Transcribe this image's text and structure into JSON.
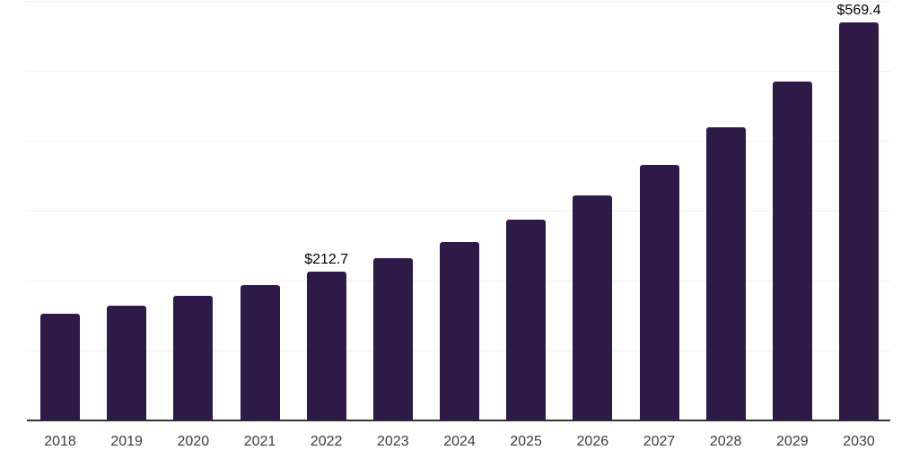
{
  "chart_data": {
    "type": "bar",
    "title": "",
    "categories": [
      "2018",
      "2019",
      "2020",
      "2021",
      "2022",
      "2023",
      "2024",
      "2025",
      "2026",
      "2027",
      "2028",
      "2029",
      "2030"
    ],
    "values": [
      152.6,
      164.5,
      178.2,
      194.0,
      212.7,
      231.5,
      255.6,
      286.8,
      322.2,
      365.0,
      419.6,
      485.0,
      569.4
    ],
    "data_labels": {
      "2022": "$212.7",
      "2030": "$569.4"
    },
    "xlabel": "",
    "ylabel": "",
    "ylim": [
      0,
      600
    ],
    "gridline_interval": 100,
    "grid": true,
    "legend": false,
    "y_tick_labels_shown": false,
    "colors": {
      "bar": "#2E1A47",
      "axis_line": "#333333",
      "gridline": "#f2f2f2",
      "tick_label": "#3d3d3d",
      "data_label": "#000000",
      "background": "#ffffff"
    }
  }
}
